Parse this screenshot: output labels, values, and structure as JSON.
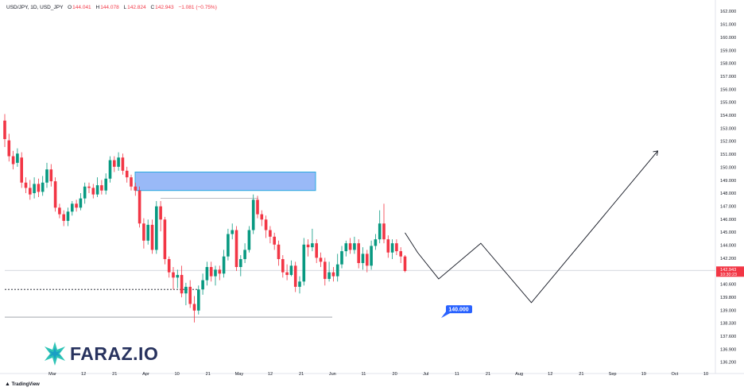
{
  "header": {
    "symbol": "USD/JPY, 1D, USD_JPY",
    "o_label": "O",
    "o_value": "144.041",
    "h_label": "H",
    "h_value": "144.078",
    "l_label": "L",
    "l_value": "142.824",
    "c_label": "C",
    "c_value": "142.943",
    "change": "−1.081 (−0.75%)"
  },
  "price_badge": {
    "price": "142.943",
    "countdown": "10:30:23"
  },
  "target_label": "140.000",
  "logo": {
    "text": "FARAZ.IO"
  },
  "footer": {
    "brand": "TradingView"
  },
  "colors": {
    "up": "#089981",
    "down": "#f23645",
    "zone": "#7fa7f5",
    "badge": "#f23645",
    "target": "#2962ff"
  },
  "chart_data": {
    "type": "candlestick",
    "title": "",
    "y_axis_labels": [
      "162.000",
      "161.000",
      "160.000",
      "159.000",
      "158.000",
      "157.000",
      "156.000",
      "155.000",
      "154.000",
      "153.000",
      "152.000",
      "151.000",
      "150.000",
      "149.000",
      "148.000",
      "147.000",
      "146.000",
      "145.000",
      "144.000",
      "142.200",
      "141.400",
      "140.600",
      "139.800",
      "139.000",
      "138.330",
      "137.600",
      "136.900",
      "136.200"
    ],
    "x_axis_labels": [
      "Mar",
      "12",
      "21",
      "Apr",
      "10",
      "21",
      "May",
      "12",
      "21",
      "Jun",
      "11",
      "20",
      "Jul",
      "11",
      "21",
      "Aug",
      "12",
      "21",
      "Sep",
      "19",
      "Oct",
      "10"
    ],
    "ylim": [
      136.0,
      162.6
    ],
    "candles": [
      [
        154.3,
        152.9,
        154.8,
        152.3
      ],
      [
        152.8,
        151.6,
        153.3,
        151.2
      ],
      [
        151.6,
        151.0,
        152.0,
        150.6
      ],
      [
        151.1,
        151.8,
        152.2,
        150.8
      ],
      [
        151.5,
        149.6,
        151.9,
        149.2
      ],
      [
        149.6,
        149.2,
        150.0,
        148.8
      ],
      [
        149.2,
        148.7,
        149.8,
        148.3
      ],
      [
        148.8,
        149.5,
        150.0,
        148.4
      ],
      [
        149.5,
        148.9,
        149.9,
        148.5
      ],
      [
        148.9,
        149.6,
        150.1,
        148.6
      ],
      [
        149.6,
        150.6,
        151.1,
        149.2
      ],
      [
        150.6,
        149.7,
        151.0,
        149.3
      ],
      [
        149.7,
        147.7,
        150.0,
        147.4
      ],
      [
        147.7,
        147.2,
        148.0,
        146.9
      ],
      [
        147.2,
        146.7,
        147.5,
        146.3
      ],
      [
        146.7,
        147.4,
        147.7,
        146.3
      ],
      [
        147.4,
        148.0,
        148.2,
        147.1
      ],
      [
        148.0,
        147.7,
        148.3,
        147.4
      ],
      [
        147.7,
        148.4,
        148.8,
        147.5
      ],
      [
        148.4,
        149.3,
        149.6,
        148.0
      ],
      [
        149.3,
        149.2,
        149.6,
        148.8
      ],
      [
        149.2,
        148.7,
        149.5,
        148.4
      ],
      [
        148.7,
        149.4,
        150.0,
        148.5
      ],
      [
        149.4,
        149.0,
        149.8,
        148.7
      ],
      [
        149.0,
        149.9,
        150.3,
        148.7
      ],
      [
        149.9,
        151.3,
        151.6,
        149.6
      ],
      [
        151.3,
        150.8,
        151.6,
        150.4
      ],
      [
        150.8,
        151.5,
        151.9,
        150.5
      ],
      [
        151.5,
        150.5,
        151.8,
        150.2
      ],
      [
        150.5,
        150.0,
        150.8,
        149.6
      ],
      [
        150.0,
        149.3,
        150.2,
        149.0
      ],
      [
        149.3,
        149.0,
        149.6,
        148.6
      ],
      [
        149.0,
        146.5,
        149.3,
        146.2
      ],
      [
        146.5,
        145.2,
        146.9,
        144.6
      ],
      [
        145.2,
        146.4,
        146.8,
        144.9
      ],
      [
        146.4,
        144.5,
        146.8,
        144.2
      ],
      [
        144.5,
        147.8,
        148.2,
        144.2
      ],
      [
        147.8,
        146.8,
        148.2,
        145.9
      ],
      [
        146.8,
        143.8,
        147.0,
        143.4
      ],
      [
        143.8,
        142.8,
        144.0,
        142.4
      ],
      [
        142.8,
        142.4,
        143.2,
        141.5
      ],
      [
        142.4,
        142.6,
        143.0,
        141.6
      ],
      [
        142.6,
        141.2,
        143.3,
        140.9
      ],
      [
        141.2,
        141.7,
        142.0,
        140.3
      ],
      [
        141.7,
        140.4,
        142.2,
        140.1
      ],
      [
        140.4,
        139.9,
        141.0,
        139.0
      ],
      [
        139.9,
        141.5,
        141.8,
        139.6
      ],
      [
        141.5,
        142.2,
        142.7,
        141.1
      ],
      [
        142.2,
        143.2,
        143.6,
        141.8
      ],
      [
        143.2,
        142.5,
        143.6,
        142.1
      ],
      [
        142.5,
        143.0,
        143.3,
        141.8
      ],
      [
        143.0,
        142.7,
        143.3,
        142.2
      ],
      [
        142.7,
        144.0,
        144.5,
        142.4
      ],
      [
        144.0,
        145.7,
        146.1,
        143.7
      ],
      [
        145.7,
        146.0,
        146.5,
        145.3
      ],
      [
        146.0,
        143.2,
        146.3,
        142.9
      ],
      [
        143.2,
        143.8,
        144.1,
        142.5
      ],
      [
        143.8,
        144.5,
        145.0,
        143.5
      ],
      [
        144.5,
        146.0,
        146.3,
        144.3
      ],
      [
        146.0,
        148.3,
        148.7,
        145.7
      ],
      [
        148.3,
        147.2,
        148.6,
        146.9
      ],
      [
        147.2,
        146.8,
        147.5,
        146.3
      ],
      [
        146.8,
        146.0,
        147.1,
        145.4
      ],
      [
        146.0,
        145.5,
        146.3,
        145.0
      ],
      [
        145.5,
        144.9,
        145.8,
        144.5
      ],
      [
        144.9,
        143.8,
        145.2,
        143.3
      ],
      [
        143.8,
        142.8,
        144.1,
        142.4
      ],
      [
        142.8,
        142.6,
        143.4,
        142.2
      ],
      [
        142.6,
        143.3,
        143.7,
        142.5
      ],
      [
        143.3,
        141.7,
        143.6,
        141.3
      ],
      [
        141.7,
        142.1,
        142.5,
        141.2
      ],
      [
        142.1,
        144.9,
        145.4,
        141.8
      ],
      [
        144.9,
        144.7,
        145.3,
        144.0
      ],
      [
        144.7,
        145.0,
        146.1,
        144.4
      ],
      [
        145.0,
        143.9,
        145.3,
        143.5
      ],
      [
        143.9,
        143.6,
        144.3,
        143.2
      ],
      [
        143.6,
        142.3,
        143.9,
        141.8
      ],
      [
        142.3,
        142.8,
        143.6,
        142.1
      ],
      [
        142.8,
        142.5,
        143.2,
        142.1
      ],
      [
        142.5,
        143.4,
        144.2,
        142.1
      ],
      [
        143.4,
        144.4,
        144.8,
        143.1
      ],
      [
        144.4,
        145.0,
        145.2,
        144.0
      ],
      [
        145.0,
        144.5,
        145.4,
        144.2
      ],
      [
        144.5,
        145.0,
        145.5,
        144.2
      ],
      [
        145.0,
        143.5,
        145.3,
        143.1
      ],
      [
        143.5,
        144.2,
        144.7,
        143.0
      ],
      [
        144.2,
        143.3,
        144.5,
        142.8
      ],
      [
        143.3,
        144.8,
        145.2,
        143.0
      ],
      [
        144.8,
        145.3,
        145.7,
        144.5
      ],
      [
        145.3,
        146.5,
        147.5,
        145.0
      ],
      [
        146.5,
        145.3,
        148.0,
        145.0
      ],
      [
        145.3,
        144.3,
        145.6,
        143.9
      ],
      [
        144.3,
        145.0,
        145.3,
        143.8
      ],
      [
        145.0,
        144.4,
        145.3,
        144.1
      ],
      [
        144.4,
        144.0,
        144.7,
        143.5
      ],
      [
        144.0,
        142.9,
        144.1,
        142.8
      ]
    ],
    "supply_zone": {
      "low": 149.0,
      "high": 150.4
    },
    "resistance_line": 148.4,
    "dashed_line": 141.5,
    "support_line": 139.4,
    "current_price_line": 142.943,
    "projection_path": [
      [
        95,
        145.8
      ],
      [
        98,
        144.3
      ],
      [
        103,
        142.3
      ],
      [
        113,
        145.0
      ],
      [
        125,
        140.5
      ],
      [
        155,
        152.0
      ]
    ],
    "projection_target": 140.0
  }
}
